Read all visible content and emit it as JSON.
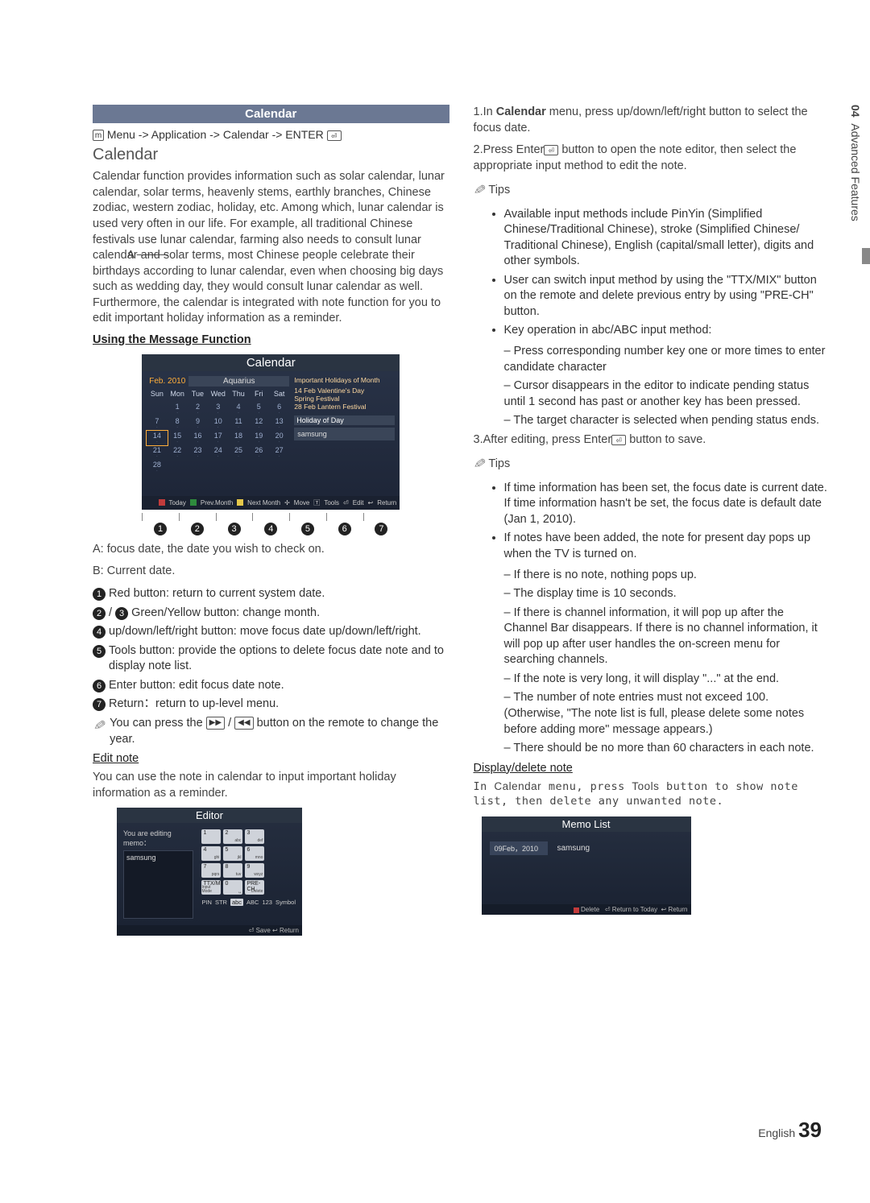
{
  "page": {
    "lang": "English",
    "num": "39"
  },
  "side": {
    "chapter": "04",
    "title": "Advanced Features"
  },
  "header": {
    "title": "Calendar"
  },
  "breadcrumb": "Menu -> Application -> Calendar -> ENTER",
  "subhead": "Calendar",
  "intro": "Calendar function provides information such as solar calendar, lunar calendar, solar terms, heavenly stems, earthly branches, Chinese zodiac, western zodiac, holiday, etc. Among which, lunar calendar is used very often in our life. For example, all traditional Chinese festivals use lunar calendar, farming also needs to consult lunar calendar and solar terms, most Chinese people celebrate their birthdays according to lunar calendar, even when choosing big days such as wedding day, they would consult lunar calendar as well. Furthermore, the calendar is integrated with note function for you to edit important holiday information as a reminder.",
  "usingHeading": "Using the Message Function",
  "calFig": {
    "title": "Calendar",
    "month": "Feb. 2010",
    "zodiac": "Aquarius",
    "days": [
      "Sun",
      "Mon",
      "Tue",
      "Wed",
      "Thu",
      "Fri",
      "Sat"
    ],
    "holidaysHdr": "Important Holidays of Month",
    "holidays": [
      "14 Feb Valentine's Day",
      "Spring Festival",
      "28 Feb Lantern Festival"
    ],
    "hodLabel": "Holiday of Day",
    "noteText": "samsung",
    "footer": {
      "today": "Today",
      "prev": "Prev.Month",
      "next": "Next Month",
      "move": "Move",
      "tools": "Tools",
      "edit": "Edit",
      "return": "Return"
    },
    "colors": {
      "a": "#c23b3b",
      "b": "#2e8b3d",
      "c": "#e6c84a"
    }
  },
  "legendA": "A: focus date, the date you wish to check on.",
  "legendB": "B: Current date.",
  "numbered": [
    "Red button: return to current system date.",
    "Green/Yellow button: change month.",
    "up/down/left/right button: move focus date up/down/left/right.",
    "Tools button: provide the options to delete focus date note and to display note list.",
    "Enter button: edit focus date note.",
    "Return：return to up-level menu."
  ],
  "yearTip": "You can press the  ▶▶ / ◀◀  button on the remote to change the year.",
  "editNoteHdr": "Edit note",
  "editNoteBody": "You can use the note in calendar to input important holiday information as a reminder.",
  "editor": {
    "title": "Editor",
    "label": "You are editing memo：",
    "text": "samsung",
    "keys": [
      {
        "n": "1",
        "s": ""
      },
      {
        "n": "2",
        "s": "abc"
      },
      {
        "n": "3",
        "s": "def"
      },
      {
        "n": "4",
        "s": "ghi"
      },
      {
        "n": "5",
        "s": "jkl"
      },
      {
        "n": "6",
        "s": "mno"
      },
      {
        "n": "7",
        "s": "pqrs"
      },
      {
        "n": "8",
        "s": "tuv"
      },
      {
        "n": "9",
        "s": "wxyz"
      },
      {
        "n": "TTX/MIX",
        "s": "Input Mode"
      },
      {
        "n": "0",
        "s": "␣"
      },
      {
        "n": "PRE-CH",
        "s": "Delete"
      }
    ],
    "modes": [
      "PIN",
      "STR",
      "abc",
      "ABC",
      "123",
      "Symbol"
    ],
    "activeMode": 2,
    "footer": "⏎ Save  ↩ Return"
  },
  "rightCol": {
    "step1a": "1.In ",
    "step1b": "Calendar",
    "step1c": " menu, press up/down/left/right button to select the focus date.",
    "step2a": "2.Press Enter",
    "step2b": " button to open the note editor, then select the appropriate input method to edit the note.",
    "tips": "Tips",
    "tip1": [
      "Available input methods include PinYin (Simplified Chinese/Traditional Chinese), stroke (Simplified Chinese/ Traditional Chinese), English (capital/small letter), digits and other symbols.",
      "User can switch input method by using the \"TTX/MIX\" button on the remote and delete previous entry by using \"PRE-CH\" button.",
      "Key operation in abc/ABC input method:"
    ],
    "tip1dash": [
      "Press corresponding number key one or more times to enter candidate character",
      "Cursor disappears in the editor to indicate pending status until 1 second has past or another key has been pressed.",
      "The target character is selected when pending status ends."
    ],
    "step3": "3.After editing, press Enter",
    "step3b": " button to save.",
    "tip2": [
      "If time information has been set, the focus date is current date. If time information hasn't be set, the focus date is default date (Jan 1, 2010).",
      "If notes have been added, the note for present day pops up when the TV is turned on."
    ],
    "tip2dash": [
      "If there is no note, nothing pops up.",
      "The display time is 10 seconds.",
      "If there is channel information, it will pop up after the Channel Bar disappears. If there is no channel information, it will pop up after user handles the on-screen menu for searching channels.",
      "If the note is very long, it will display \"...\" at the end.",
      "The number of note entries must not exceed 100. (Otherwise, \"The note list is full, please delete some notes before adding more\" message appears.)",
      "There should be no more than 60 characters in each note."
    ],
    "displayHdr": "Display/delete note",
    "displayBody1": "In ",
    "displayBody2": "Calendar",
    "displayBody3": " menu, press ",
    "displayBody4": "Tools",
    "displayBody5": " button to show note list, then delete any unwanted note.",
    "memo": {
      "title": "Memo List",
      "date": "09Feb，2010",
      "text": "samsung",
      "footer": {
        "delete": "Delete",
        "return": "Return to Today",
        "back": "Return"
      }
    }
  }
}
